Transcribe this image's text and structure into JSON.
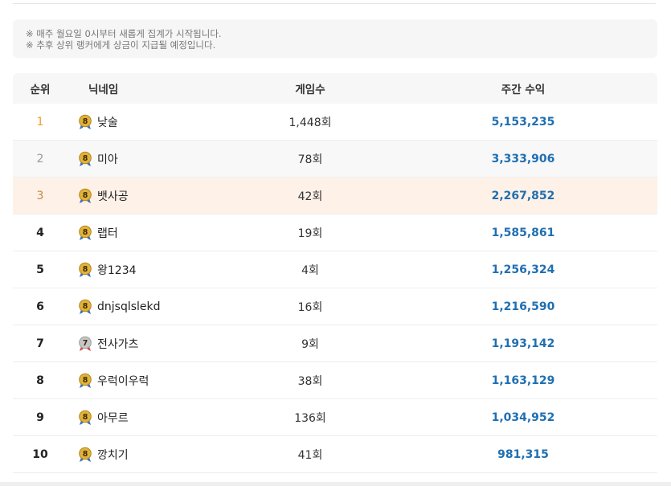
{
  "notice": {
    "line1": "※ 매주 월요일 0시부터 새롭게 집계가 시작됩니다.",
    "line2": "※ 추후 상위 랭커에게 상금이 지급될 예정입니다."
  },
  "table": {
    "headers": {
      "rank": "순위",
      "nickname": "닉네임",
      "games": "게임수",
      "earnings": "주간 수익"
    },
    "rows": [
      {
        "rank": "1",
        "badge": "8",
        "nickname": "낮술",
        "games": "1,448회",
        "earnings": "5,153,235"
      },
      {
        "rank": "2",
        "badge": "8",
        "nickname": "미아",
        "games": "78회",
        "earnings": "3,333,906"
      },
      {
        "rank": "3",
        "badge": "8",
        "nickname": "뱃사공",
        "games": "42회",
        "earnings": "2,267,852"
      },
      {
        "rank": "4",
        "badge": "8",
        "nickname": "랩터",
        "games": "19회",
        "earnings": "1,585,861"
      },
      {
        "rank": "5",
        "badge": "8",
        "nickname": "왕1234",
        "games": "4회",
        "earnings": "1,256,324"
      },
      {
        "rank": "6",
        "badge": "8",
        "nickname": "dnjsqlslekd",
        "games": "16회",
        "earnings": "1,216,590"
      },
      {
        "rank": "7",
        "badge": "7",
        "nickname": "전사가츠",
        "games": "9회",
        "earnings": "1,193,142"
      },
      {
        "rank": "8",
        "badge": "8",
        "nickname": "우럭이우럭",
        "games": "38회",
        "earnings": "1,163,129"
      },
      {
        "rank": "9",
        "badge": "8",
        "nickname": "아무르",
        "games": "136회",
        "earnings": "1,034,952"
      },
      {
        "rank": "10",
        "badge": "8",
        "nickname": "깡치기",
        "games": "41회",
        "earnings": "981,315"
      }
    ]
  },
  "colors": {
    "earnings": "#1f6fb2",
    "rank1": "#f0a020",
    "rank2": "#999999",
    "rank3": "#c98440",
    "third_row_bg": "#fdf1e8",
    "badge_gold": "#e2b33a",
    "badge_silver": "#c7c7c7"
  },
  "icons": {
    "level_badge": "level-medal-icon"
  }
}
